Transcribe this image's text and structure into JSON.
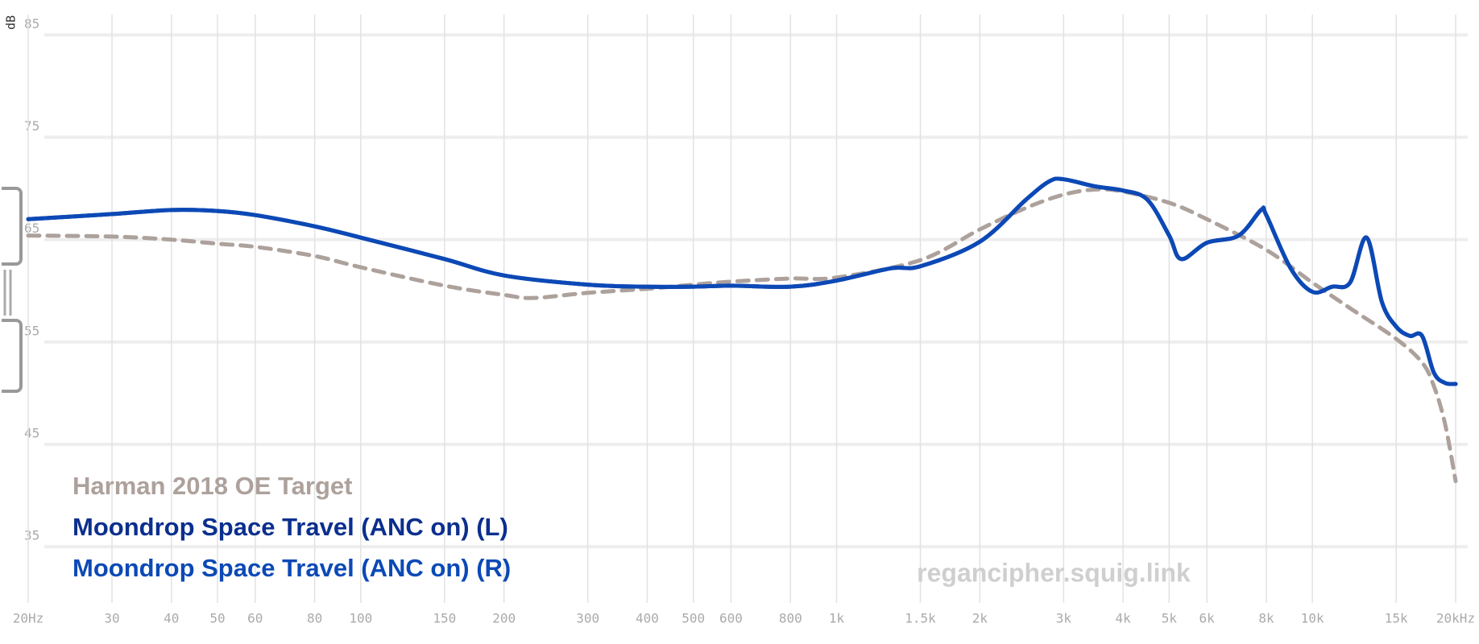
{
  "chart_data": {
    "type": "line",
    "x_scale": "log",
    "grid": true,
    "y_label": "dB",
    "watermark": "regancipher.squig.link",
    "xlim": [
      20,
      20000
    ],
    "ylim": [
      29.5,
      87
    ],
    "yticks": [
      35,
      45,
      55,
      65,
      75,
      85
    ],
    "xticks": [
      {
        "value": 20,
        "label": "20Hz"
      },
      30,
      40,
      50,
      60,
      80,
      100,
      150,
      200,
      300,
      400,
      500,
      600,
      800,
      {
        "value": 1000,
        "label": "1k"
      },
      {
        "value": 1500,
        "label": "1.5k"
      },
      {
        "value": 2000,
        "label": "2k"
      },
      {
        "value": 3000,
        "label": "3k"
      },
      {
        "value": 4000,
        "label": "4k"
      },
      {
        "value": 5000,
        "label": "5k"
      },
      {
        "value": 6000,
        "label": "6k"
      },
      {
        "value": 8000,
        "label": "8k"
      },
      {
        "value": 10000,
        "label": "10k"
      },
      {
        "value": 15000,
        "label": "15k"
      },
      {
        "value": 20000,
        "label": "20kHz"
      }
    ],
    "series": [
      {
        "name": "Harman 2018 OE Target",
        "color": "#ada19c",
        "dashed": true,
        "x": [
          20,
          30,
          40,
          50,
          60,
          80,
          100,
          150,
          200,
          230,
          300,
          400,
          500,
          600,
          800,
          1000,
          1500,
          2000,
          2500,
          3000,
          3500,
          4000,
          5000,
          6000,
          8000,
          10000,
          12000,
          15000,
          17000,
          18000,
          19000,
          20000
        ],
        "values": [
          65.4,
          65.3,
          65.0,
          64.6,
          64.3,
          63.4,
          62.3,
          60.5,
          59.6,
          59.3,
          59.8,
          60.2,
          60.6,
          60.9,
          61.2,
          61.3,
          63.0,
          66.0,
          68.1,
          69.4,
          69.9,
          69.7,
          68.6,
          67.0,
          64.0,
          60.8,
          58.3,
          55.3,
          53.0,
          50.7,
          47.0,
          41.4
        ]
      },
      {
        "name": "Moondrop Space Travel (ANC on) (L)",
        "color": "#0b2f8e",
        "x": [
          20,
          30,
          40,
          50,
          60,
          80,
          100,
          150,
          200,
          300,
          400,
          500,
          600,
          800,
          1000,
          1300,
          1500,
          2000,
          2500,
          2800,
          3000,
          3500,
          4000,
          4500,
          5000,
          5300,
          6000,
          7000,
          7800,
          8000,
          9000,
          10000,
          11000,
          12000,
          13000,
          14000,
          15000,
          16000,
          17000,
          18000,
          19000,
          20000
        ],
        "values": [
          67.0,
          67.5,
          67.9,
          67.8,
          67.4,
          66.3,
          65.2,
          63.1,
          61.5,
          60.6,
          60.4,
          60.4,
          60.5,
          60.4,
          61.0,
          62.2,
          62.4,
          64.8,
          68.9,
          70.7,
          70.9,
          70.2,
          69.8,
          68.9,
          65.4,
          63.1,
          64.7,
          65.4,
          67.9,
          67.4,
          62.2,
          59.9,
          60.4,
          60.8,
          65.2,
          58.9,
          56.5,
          55.6,
          55.6,
          52.0,
          51.0,
          50.9
        ]
      },
      {
        "name": "Moondrop Space Travel (ANC on) (R)",
        "color": "#0c49b6",
        "x": [
          20,
          30,
          40,
          50,
          60,
          80,
          100,
          150,
          200,
          300,
          400,
          500,
          600,
          800,
          1000,
          1300,
          1500,
          2000,
          2500,
          2800,
          3000,
          3500,
          4000,
          4500,
          5000,
          5300,
          6000,
          7000,
          7800,
          8000,
          9000,
          10000,
          11000,
          12000,
          13000,
          14000,
          15000,
          16000,
          17000,
          18000,
          19000,
          20000
        ],
        "values": [
          67.0,
          67.5,
          67.9,
          67.8,
          67.4,
          66.3,
          65.2,
          63.1,
          61.5,
          60.6,
          60.4,
          60.4,
          60.5,
          60.4,
          61.0,
          62.2,
          62.4,
          64.8,
          68.9,
          70.7,
          70.9,
          70.2,
          69.8,
          68.9,
          65.4,
          63.1,
          64.7,
          65.4,
          67.9,
          67.4,
          62.2,
          59.9,
          60.4,
          60.8,
          65.2,
          58.9,
          56.5,
          55.6,
          55.6,
          52.0,
          51.0,
          50.9
        ]
      }
    ]
  }
}
